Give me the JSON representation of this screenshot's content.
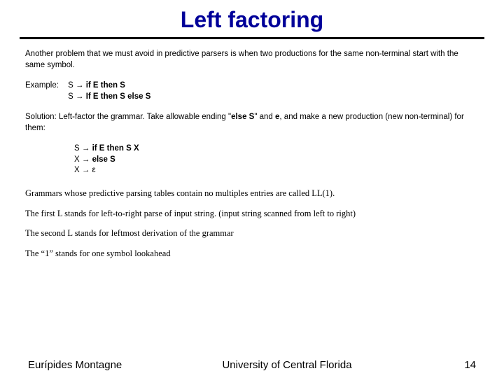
{
  "title": "Left factoring",
  "intro": "Another problem that we must avoid in predictive parsers is when two productions for the same non-terminal start with the same symbol.",
  "example_label": "Example:",
  "example_prod1_pre": "S → ",
  "example_prod1_bold": "if E then S",
  "example_prod2_pre": "S → ",
  "example_prod2_bold": "If E then S else S",
  "solution_pre": "Solution: Left-factor the grammar. Take allowable ending \"",
  "solution_bold1": "else S",
  "solution_mid": "\" and ",
  "solution_bold2": "e",
  "solution_post": ", and make a new production (new non-terminal) for them:",
  "newprod1_pre": "S → ",
  "newprod1_bold": "if E then S X",
  "newprod2_pre": "X → ",
  "newprod2_bold": "else S",
  "newprod3": "X → ε",
  "ll1_p1": "Grammars whose predictive parsing tables contain no multiples entries are called LL(1).",
  "ll1_p2": "The first L stands for left-to-right parse of input string. (input string scanned from left to right)",
  "ll1_p3": "The second L stands for leftmost derivation of the grammar",
  "ll1_p4": "The “1” stands for one symbol lookahead",
  "footer_author": "Eurípides Montagne",
  "footer_univ": "University of Central Florida",
  "footer_page": "14",
  "colors": {
    "title": "#000099",
    "text": "#000000",
    "background": "#ffffff",
    "rule": "#000000"
  }
}
